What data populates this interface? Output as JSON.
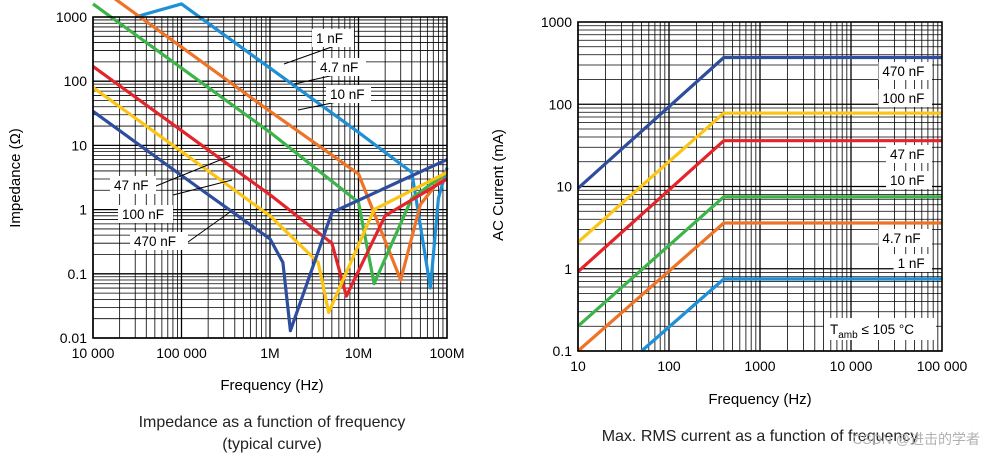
{
  "chart_data": [
    {
      "type": "line",
      "title": "Impedance as a function of frequency",
      "subtitle": "(typical curve)",
      "xlabel": "Frequency (Hz)",
      "ylabel": "Impedance (Ω)",
      "xscale": "log",
      "yscale": "log",
      "xlim": [
        10000,
        100000000
      ],
      "ylim": [
        0.01,
        1000
      ],
      "grid": true,
      "xticks": [
        {
          "value": 10000,
          "label": "10 000"
        },
        {
          "value": 100000,
          "label": "100 000"
        },
        {
          "value": 1000000,
          "label": "1M"
        },
        {
          "value": 10000000,
          "label": "10M"
        },
        {
          "value": 100000000,
          "label": "100M"
        }
      ],
      "yticks": [
        {
          "value": 0.01,
          "label": "0.01"
        },
        {
          "value": 0.1,
          "label": "0.1"
        },
        {
          "value": 1,
          "label": "1"
        },
        {
          "value": 10,
          "label": "10"
        },
        {
          "value": 100,
          "label": "100"
        },
        {
          "value": 1000,
          "label": "1000"
        }
      ],
      "series": [
        {
          "name": "1 nF",
          "color": "#1f8fd6",
          "x": [
            30000,
            100000,
            1000000,
            10000000,
            40000000,
            65000000,
            80000000,
            100000000
          ],
          "y": [
            1000,
            1600,
            160,
            16,
            3.8,
            0.06,
            1.5,
            4.5
          ],
          "label_anchor": [
            1700000,
            70
          ]
        },
        {
          "name": "4.7 nF",
          "color": "#ee7326",
          "x": [
            10000,
            100000,
            1000000,
            10000000,
            30000000,
            50000000,
            100000000
          ],
          "y": [
            3400,
            340,
            34,
            3.6,
            0.08,
            1.2,
            4
          ]
        },
        {
          "name": "10 nF",
          "color": "#3cb449",
          "x": [
            10000,
            100000,
            1000000,
            10000000,
            15000000,
            40000000,
            100000000
          ],
          "y": [
            1600,
            160,
            16,
            1.3,
            0.07,
            1.5,
            3.8
          ]
        },
        {
          "name": "47 nF",
          "color": "#e3242b",
          "x": [
            10000,
            100000,
            1000000,
            5000000,
            7300000,
            20000000,
            100000000
          ],
          "y": [
            170,
            17,
            1.7,
            0.3,
            0.045,
            0.8,
            3
          ]
        },
        {
          "name": "100 nF",
          "color": "#fcc513",
          "x": [
            10000,
            100000,
            1000000,
            3500000,
            4600000,
            15000000,
            100000000
          ],
          "y": [
            80,
            8,
            0.8,
            0.15,
            0.025,
            1,
            3.8
          ]
        },
        {
          "name": "470 nF",
          "color": "#2e4d9c",
          "x": [
            10000,
            100000,
            1000000,
            1400000,
            1700000,
            5000000,
            100000000
          ],
          "y": [
            34,
            3.4,
            0.35,
            0.15,
            0.013,
            0.9,
            6
          ]
        }
      ]
    },
    {
      "type": "line",
      "title": "Max. RMS current as a function of frequency",
      "xlabel": "Frequency (Hz)",
      "ylabel": "AC Current (mA)",
      "xscale": "log",
      "yscale": "log",
      "xlim": [
        10,
        100000
      ],
      "ylim": [
        0.1,
        1000
      ],
      "grid": true,
      "annotation": {
        "main": "T",
        "sub": "amb",
        "rest": " ≤ 105 °C"
      },
      "xticks": [
        {
          "value": 10,
          "label": "10"
        },
        {
          "value": 100,
          "label": "100"
        },
        {
          "value": 1000,
          "label": "1000"
        },
        {
          "value": 10000,
          "label": "10 000"
        },
        {
          "value": 100000,
          "label": "100 000"
        }
      ],
      "yticks": [
        {
          "value": 0.1,
          "label": "0.1"
        },
        {
          "value": 1,
          "label": "1"
        },
        {
          "value": 10,
          "label": "10"
        },
        {
          "value": 100,
          "label": "100"
        },
        {
          "value": 1000,
          "label": "1000"
        }
      ],
      "series": [
        {
          "name": "470 nF",
          "color": "#2e4d9c",
          "x": [
            10,
            400,
            100000
          ],
          "y": [
            9.5,
            370,
            370
          ]
        },
        {
          "name": "100 nF",
          "color": "#fcc513",
          "x": [
            10,
            400,
            100000
          ],
          "y": [
            2.1,
            78,
            78
          ]
        },
        {
          "name": "47 nF",
          "color": "#e3242b",
          "x": [
            10,
            400,
            100000
          ],
          "y": [
            0.92,
            36,
            36
          ]
        },
        {
          "name": "10 nF",
          "color": "#3cb449",
          "x": [
            10,
            400,
            100000
          ],
          "y": [
            0.2,
            7.5,
            7.5
          ]
        },
        {
          "name": "4.7 nF",
          "color": "#ee7326",
          "x": [
            10,
            400,
            100000
          ],
          "y": [
            0.1,
            3.6,
            3.6
          ]
        },
        {
          "name": "1 nF",
          "color": "#1f8fd6",
          "x": [
            50,
            400,
            100000
          ],
          "y": [
            0.1,
            0.75,
            0.75
          ]
        }
      ]
    }
  ],
  "watermark": "CSDN @进击的学者"
}
